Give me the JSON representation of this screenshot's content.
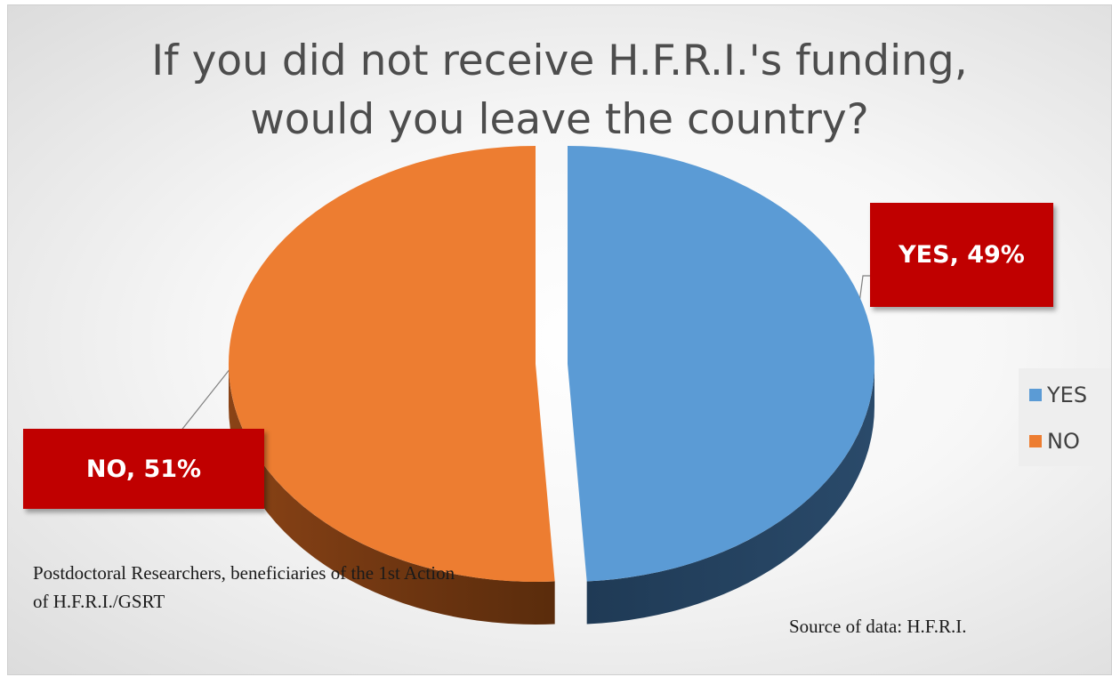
{
  "chart_data": {
    "type": "pie",
    "title_lines": [
      "If you did not receive H.F.R.I.'s funding,",
      "would you leave the country?"
    ],
    "slices": [
      {
        "category": "YES",
        "percent": 49,
        "label": "YES, 49%",
        "color": "#5b9bd5"
      },
      {
        "category": "NO",
        "percent": 51,
        "label": "NO, 51%",
        "color": "#ed7d31"
      }
    ],
    "legend": {
      "placement": "right",
      "items": [
        {
          "label": "YES",
          "color": "#5b9bd5"
        },
        {
          "label": "NO",
          "color": "#ed7d31"
        }
      ]
    },
    "style": "3d-exploded",
    "label_box_color": "#c00000"
  },
  "notes": {
    "sample_lines": [
      "Postdoctoral Researchers, beneficiaries of the 1st Action",
      "of H.F.R.I./GSRT"
    ],
    "source": "Source of data: H.F.R.I."
  }
}
